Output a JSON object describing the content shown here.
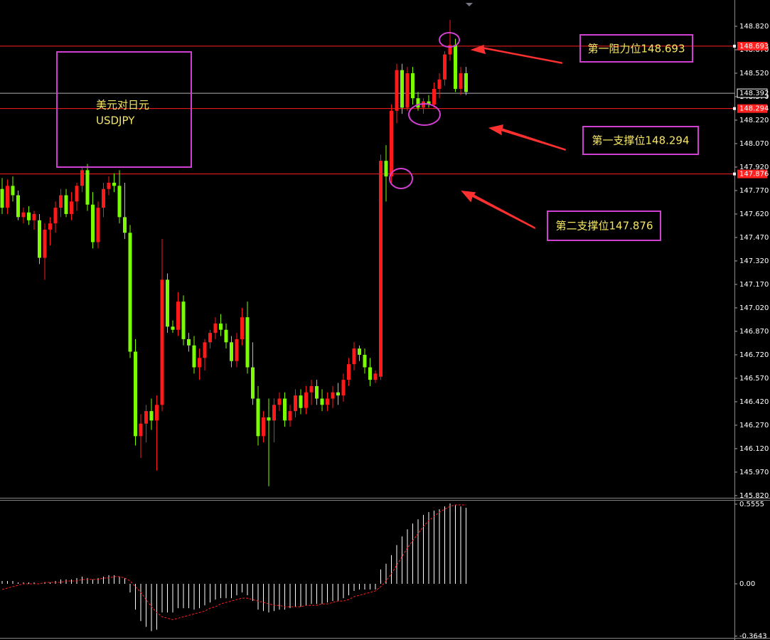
{
  "chart_data": [
    {
      "type": "candlestick",
      "up_color": "#ff1a1a",
      "down_color": "#7cfc00",
      "open": [
        147.78,
        147.66,
        147.8,
        147.74,
        147.6,
        147.63,
        147.58,
        147.58,
        147.34,
        147.52,
        147.56,
        147.66,
        147.74,
        147.62,
        147.7,
        147.8,
        147.9,
        147.68,
        147.44,
        147.66,
        147.78,
        147.82,
        147.8,
        147.6,
        147.5,
        146.74,
        146.2,
        146.28,
        146.36,
        146.3,
        146.4,
        147.2,
        146.9,
        146.88,
        147.06,
        146.82,
        146.78,
        146.64,
        146.7,
        146.8,
        146.86,
        146.92,
        146.88,
        146.8,
        146.68,
        146.82,
        146.96,
        146.64,
        146.44,
        146.2,
        146.32,
        146.3,
        146.4,
        146.44,
        146.3,
        146.36,
        146.46,
        146.38,
        146.48,
        146.52,
        146.44,
        146.4,
        146.44,
        146.48,
        146.46,
        146.56,
        146.66,
        146.76,
        146.72,
        146.64,
        146.56,
        146.58,
        147.96,
        147.86,
        148.28,
        148.54,
        148.3,
        148.52,
        148.36,
        148.3,
        148.34,
        148.32,
        148.42,
        148.48,
        148.64,
        148.7,
        148.42,
        148.52
      ],
      "high": [
        147.85,
        147.84,
        147.86,
        147.77,
        147.66,
        147.67,
        147.64,
        147.62,
        147.56,
        147.6,
        147.7,
        147.78,
        147.78,
        147.76,
        147.82,
        147.92,
        147.94,
        147.76,
        147.7,
        147.82,
        147.86,
        147.88,
        147.9,
        147.82,
        147.55,
        146.82,
        146.34,
        146.4,
        146.44,
        146.46,
        147.46,
        147.24,
        146.94,
        147.12,
        147.1,
        146.86,
        146.84,
        146.76,
        146.82,
        146.88,
        146.96,
        146.98,
        146.92,
        146.84,
        146.86,
        147.02,
        147.06,
        146.8,
        146.52,
        146.36,
        146.44,
        146.44,
        146.48,
        146.48,
        146.4,
        146.5,
        146.5,
        146.52,
        146.56,
        146.56,
        146.5,
        146.48,
        146.52,
        146.54,
        146.6,
        146.7,
        146.8,
        146.78,
        146.76,
        146.7,
        146.62,
        148.0,
        148.06,
        148.32,
        148.58,
        148.58,
        148.56,
        148.56,
        148.4,
        148.36,
        148.38,
        148.46,
        148.52,
        148.66,
        148.86,
        148.74,
        148.56,
        148.56
      ],
      "low": [
        147.62,
        147.62,
        147.7,
        147.58,
        147.56,
        147.55,
        147.52,
        147.3,
        147.2,
        147.42,
        147.5,
        147.6,
        147.6,
        147.58,
        147.64,
        147.76,
        147.64,
        147.4,
        147.4,
        147.6,
        147.74,
        147.76,
        147.56,
        147.46,
        146.7,
        146.14,
        146.06,
        146.16,
        146.24,
        145.98,
        146.36,
        146.86,
        146.86,
        146.84,
        146.78,
        146.74,
        146.6,
        146.56,
        146.62,
        146.76,
        146.82,
        146.84,
        146.76,
        146.64,
        146.64,
        146.78,
        146.6,
        146.4,
        146.14,
        146.16,
        145.88,
        146.16,
        146.36,
        146.26,
        146.26,
        146.32,
        146.34,
        146.34,
        146.4,
        146.4,
        146.36,
        146.36,
        146.38,
        146.4,
        146.42,
        146.52,
        146.62,
        146.68,
        146.6,
        146.52,
        146.54,
        146.56,
        147.7,
        147.82,
        148.2,
        148.26,
        148.28,
        148.32,
        148.28,
        148.26,
        148.3,
        148.3,
        148.36,
        148.44,
        148.6,
        148.4,
        148.38,
        148.38
      ],
      "close": [
        147.66,
        147.8,
        147.74,
        147.6,
        147.63,
        147.58,
        147.62,
        147.34,
        147.52,
        147.56,
        147.66,
        147.74,
        147.62,
        147.7,
        147.8,
        147.9,
        147.68,
        147.44,
        147.66,
        147.78,
        147.82,
        147.8,
        147.6,
        147.5,
        146.74,
        146.2,
        146.28,
        146.36,
        146.3,
        146.4,
        147.2,
        146.9,
        146.88,
        147.06,
        146.82,
        146.78,
        146.64,
        146.7,
        146.8,
        146.86,
        146.92,
        146.88,
        146.8,
        146.68,
        146.82,
        146.96,
        146.64,
        146.44,
        146.2,
        146.32,
        146.3,
        146.4,
        146.44,
        146.3,
        146.36,
        146.46,
        146.38,
        146.48,
        146.52,
        146.44,
        146.4,
        146.44,
        146.48,
        146.46,
        146.56,
        146.66,
        146.76,
        146.72,
        146.64,
        146.56,
        146.6,
        147.96,
        147.86,
        148.28,
        148.54,
        148.3,
        148.52,
        148.36,
        148.3,
        148.34,
        148.32,
        148.42,
        148.48,
        148.64,
        148.7,
        148.42,
        148.52,
        148.4
      ],
      "ylim": [
        145.806,
        148.988
      ],
      "yticks": [
        {
          "value": 148.82,
          "label": "148.820"
        },
        {
          "value": 148.67,
          "label": "148.670"
        },
        {
          "value": 148.52,
          "label": "148.520"
        },
        {
          "value": 148.37,
          "label": "148.370"
        },
        {
          "value": 148.22,
          "label": "148.220"
        },
        {
          "value": 148.07,
          "label": "148.070"
        },
        {
          "value": 147.92,
          "label": "147.920"
        },
        {
          "value": 147.77,
          "label": "147.770"
        },
        {
          "value": 147.62,
          "label": "147.620"
        },
        {
          "value": 147.47,
          "label": "147.470"
        },
        {
          "value": 147.32,
          "label": "147.320"
        },
        {
          "value": 147.17,
          "label": "147.170"
        },
        {
          "value": 147.02,
          "label": "147.020"
        },
        {
          "value": 146.87,
          "label": "146.870"
        },
        {
          "value": 146.72,
          "label": "146.720"
        },
        {
          "value": 146.57,
          "label": "146.570"
        },
        {
          "value": 146.42,
          "label": "146.420"
        },
        {
          "value": 146.27,
          "label": "146.270"
        },
        {
          "value": 146.12,
          "label": "146.120"
        },
        {
          "value": 145.97,
          "label": "145.970"
        },
        {
          "value": 145.82,
          "label": "145.820"
        }
      ],
      "levels": [
        148.693,
        148.294,
        147.876
      ],
      "level_color": "#ff2020",
      "current_price": 148.392,
      "current_color": "#b0b0b0",
      "pair_box": [
        "美元对日元",
        "USDJPY"
      ],
      "callouts": [
        "第一阻力位148.693",
        "第一支撑位148.294",
        "第二支撑位147.876"
      ]
    },
    {
      "type": "macd",
      "histogram": [
        0.02,
        0.02,
        0.02,
        0.01,
        0.01,
        0.01,
        0.01,
        0.0,
        0.01,
        0.01,
        0.02,
        0.03,
        0.03,
        0.03,
        0.04,
        0.05,
        0.04,
        0.03,
        0.04,
        0.05,
        0.06,
        0.06,
        0.05,
        0.04,
        -0.06,
        -0.18,
        -0.26,
        -0.3,
        -0.33,
        -0.32,
        -0.2,
        -0.2,
        -0.2,
        -0.17,
        -0.17,
        -0.17,
        -0.18,
        -0.17,
        -0.15,
        -0.13,
        -0.11,
        -0.1,
        -0.1,
        -0.1,
        -0.08,
        -0.06,
        -0.08,
        -0.12,
        -0.18,
        -0.19,
        -0.2,
        -0.19,
        -0.18,
        -0.18,
        -0.17,
        -0.16,
        -0.16,
        -0.15,
        -0.14,
        -0.14,
        -0.14,
        -0.13,
        -0.12,
        -0.12,
        -0.1,
        -0.08,
        -0.05,
        -0.04,
        -0.04,
        -0.04,
        -0.04,
        0.1,
        0.14,
        0.2,
        0.27,
        0.33,
        0.38,
        0.42,
        0.45,
        0.48,
        0.5,
        0.51,
        0.52,
        0.54,
        0.56,
        0.55,
        0.54,
        0.53
      ],
      "signal": [
        -0.04,
        -0.03,
        -0.02,
        -0.01,
        0.0,
        0.0,
        0.0,
        0.0,
        0.01,
        0.01,
        0.01,
        0.01,
        0.02,
        0.02,
        0.02,
        0.03,
        0.03,
        0.03,
        0.03,
        0.04,
        0.04,
        0.05,
        0.05,
        0.04,
        0.02,
        -0.02,
        -0.06,
        -0.11,
        -0.16,
        -0.2,
        -0.23,
        -0.24,
        -0.25,
        -0.24,
        -0.23,
        -0.22,
        -0.21,
        -0.2,
        -0.19,
        -0.17,
        -0.16,
        -0.14,
        -0.13,
        -0.12,
        -0.11,
        -0.1,
        -0.1,
        -0.11,
        -0.12,
        -0.13,
        -0.14,
        -0.15,
        -0.15,
        -0.16,
        -0.16,
        -0.16,
        -0.16,
        -0.15,
        -0.15,
        -0.15,
        -0.14,
        -0.14,
        -0.13,
        -0.12,
        -0.12,
        -0.11,
        -0.09,
        -0.08,
        -0.07,
        -0.06,
        -0.05,
        -0.02,
        0.02,
        0.07,
        0.13,
        0.19,
        0.25,
        0.3,
        0.35,
        0.4,
        0.44,
        0.47,
        0.5,
        0.52,
        0.54,
        0.55,
        0.55,
        0.55
      ],
      "histogram_color": "#ffffff",
      "signal_color": "#ff2020",
      "ylim": [
        -0.377,
        0.585
      ],
      "yticks": [
        0.5555,
        {
          "value": 0,
          "label": "0.00"
        },
        -0.3643
      ]
    }
  ]
}
